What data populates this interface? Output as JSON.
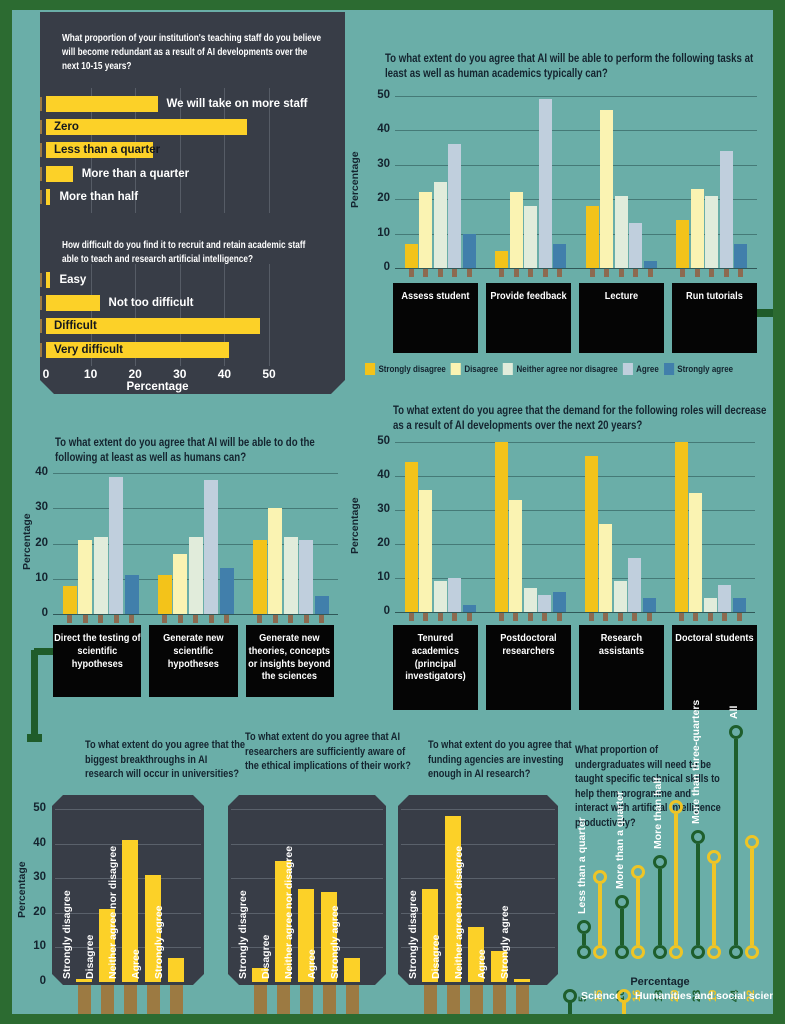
{
  "colors": {
    "background": "#6aaea8",
    "frame_green": "#2c6b31",
    "trace_green": "#1f5c2a",
    "panel_dark": "#383d47",
    "box_black": "#050505",
    "bar_yellow": "#fcd128",
    "pin_tan": "#9c7a42",
    "pin_small": "#8d6a50",
    "title_dark": "#14242f",
    "science_green": "#1e5e2c",
    "humanities_yellow": "#eec526"
  },
  "likert_levels": [
    {
      "label": "Strongly disagree",
      "color": "#f3c31a"
    },
    {
      "label": "Disagree",
      "color": "#faf3b2"
    },
    {
      "label": "Neither agree nor disagree",
      "color": "#e1ecdb"
    },
    {
      "label": "Agree",
      "color": "#c0cfdd"
    },
    {
      "label": "Strongly agree",
      "color": "#417fab"
    }
  ],
  "chart_data": [
    {
      "id": "staff-redundancy",
      "type": "bar",
      "orientation": "horizontal",
      "title": "What proportion of your institution's teaching staff do you believe will become redundant as a result of AI developments over the next 10-15 years?",
      "categories": [
        "We will take on more staff",
        "Zero",
        "Less than a quarter",
        "More than a quarter",
        "More than half"
      ],
      "values": [
        25,
        45,
        24,
        6,
        1
      ],
      "label_inside": [
        false,
        true,
        true,
        false,
        false
      ],
      "xlabel": "Percentage",
      "xlim": [
        0,
        50
      ],
      "xticks": [
        0,
        10,
        20,
        30,
        40,
        50
      ]
    },
    {
      "id": "recruitment-difficulty",
      "type": "bar",
      "orientation": "horizontal",
      "title": "How difficult do you find it to recruit and retain academic staff able to teach and research artificial intelligence?",
      "categories": [
        "Easy",
        "Not too difficult",
        "Difficult",
        "Very difficult"
      ],
      "values": [
        1,
        12,
        48,
        41
      ],
      "label_inside": [
        false,
        false,
        true,
        true
      ],
      "xlabel": "Percentage",
      "xlim": [
        0,
        50
      ],
      "xticks": [
        0,
        10,
        20,
        30,
        40,
        50
      ]
    },
    {
      "id": "ai-tasks",
      "type": "bar",
      "grouped": true,
      "title": "To what extent do you agree that AI will be able to perform the following tasks at least as well as human academics typically can?",
      "categories": [
        "Assess student",
        "Provide feedback",
        "Lecture",
        "Run tutorials"
      ],
      "series": [
        {
          "name": "Strongly disagree",
          "values": [
            7,
            5,
            18,
            14
          ]
        },
        {
          "name": "Disagree",
          "values": [
            22,
            22,
            46,
            23
          ]
        },
        {
          "name": "Neither agree nor disagree",
          "values": [
            25,
            18,
            21,
            21
          ]
        },
        {
          "name": "Agree",
          "values": [
            36,
            49,
            13,
            34
          ]
        },
        {
          "name": "Strongly agree",
          "values": [
            10,
            7,
            2,
            7
          ]
        }
      ],
      "ylabel": "Percentage",
      "ylim": [
        0,
        50
      ],
      "yticks": [
        0,
        10,
        20,
        30,
        40,
        50
      ]
    },
    {
      "id": "role-demand",
      "type": "bar",
      "grouped": true,
      "title": "To what extent do you agree that the demand for the following roles will decrease as a result of AI developments over the next 20 years?",
      "categories": [
        "Tenured academics (principal investigators)",
        "Postdoctoral researchers",
        "Research assistants",
        "Doctoral students"
      ],
      "series": [
        {
          "name": "Strongly disagree",
          "values": [
            44,
            50,
            46,
            50
          ]
        },
        {
          "name": "Disagree",
          "values": [
            36,
            33,
            26,
            35
          ]
        },
        {
          "name": "Neither agree nor disagree",
          "values": [
            9,
            7,
            9,
            4
          ]
        },
        {
          "name": "Agree",
          "values": [
            10,
            5,
            16,
            8
          ]
        },
        {
          "name": "Strongly agree",
          "values": [
            2,
            6,
            4,
            4
          ]
        }
      ],
      "ylabel": "Percentage",
      "ylim": [
        0,
        50
      ],
      "yticks": [
        0,
        10,
        20,
        30,
        40,
        50
      ]
    },
    {
      "id": "ai-vs-humans",
      "type": "bar",
      "grouped": true,
      "title": "To what extent do you agree that AI will be able to do the following at least as well as humans can?",
      "categories": [
        "Direct the testing of scientific hypotheses",
        "Generate new scientific hypotheses",
        "Generate new theories, concepts or insights beyond the sciences"
      ],
      "series": [
        {
          "name": "Strongly disagree",
          "values": [
            8,
            11,
            21
          ]
        },
        {
          "name": "Disagree",
          "values": [
            21,
            17,
            30
          ]
        },
        {
          "name": "Neither agree nor disagree",
          "values": [
            22,
            22,
            22
          ]
        },
        {
          "name": "Agree",
          "values": [
            39,
            38,
            21
          ]
        },
        {
          "name": "Strongly agree",
          "values": [
            11,
            13,
            5
          ]
        }
      ],
      "ylabel": "Percentage",
      "ylim": [
        0,
        40
      ],
      "yticks": [
        0,
        10,
        20,
        30,
        40
      ]
    },
    {
      "id": "breakthroughs-universities",
      "type": "bar",
      "title": "To what extent do you agree that the biggest breakthroughs in AI research will occur in universities?",
      "categories": [
        "Strongly disagree",
        "Disagree",
        "Neither agree nor disagree",
        "Agree",
        "Strongly agree"
      ],
      "values": [
        1,
        21,
        41,
        31,
        7
      ],
      "ylabel": "Percentage",
      "ylim": [
        0,
        50
      ],
      "yticks": [
        0,
        10,
        20,
        30,
        40,
        50
      ]
    },
    {
      "id": "ethics-awareness",
      "type": "bar",
      "title": "To what extent do you agree that AI researchers are sufficiently aware of the ethical implications of their work?",
      "categories": [
        "Strongly disagree",
        "Disagree",
        "Neither agree nor disagree",
        "Agree",
        "Strongly agree"
      ],
      "values": [
        4,
        35,
        27,
        26,
        7
      ],
      "ylim": [
        0,
        50
      ]
    },
    {
      "id": "funding-investment",
      "type": "bar",
      "title": "To what extent do you agree that funding agencies are investing enough in AI research?",
      "categories": [
        "Strongly disagree",
        "Disagree",
        "Neither agree nor disagree",
        "Agree",
        "Strongly agree"
      ],
      "values": [
        27,
        48,
        16,
        9,
        1
      ],
      "ylim": [
        0,
        50
      ]
    },
    {
      "id": "undergraduate-skills",
      "type": "lollipop",
      "title": "What proportion of undergraduates will need to be taught specific technical skills to help them programme and interact with artificial intelligence productively?",
      "categories": [
        "Less than a quarter",
        "More than a quarter",
        "More than half",
        "More than three-quarters",
        "All"
      ],
      "series": [
        {
          "name": "Science",
          "color": "#1e5e2c",
          "values": [
            5,
            10,
            18,
            23,
            44
          ]
        },
        {
          "name": "Humanities and social sciences",
          "color": "#eec526",
          "values": [
            15,
            16,
            29,
            19,
            22
          ]
        }
      ],
      "xlabel": "Percentage"
    }
  ]
}
